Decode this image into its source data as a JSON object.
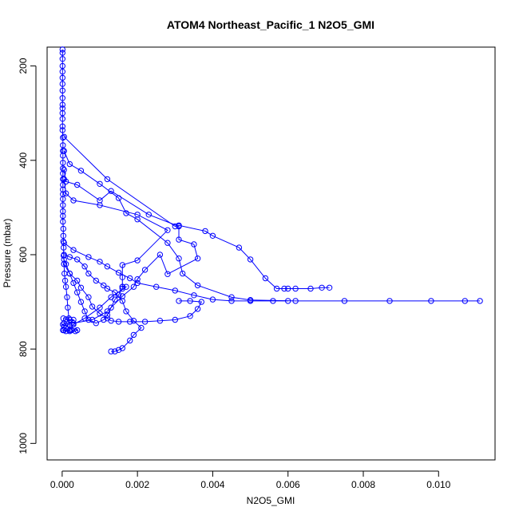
{
  "chart_data": {
    "type": "line",
    "title": "ATOM4 Northeast_Pacific_1 N2O5_GMI",
    "xlabel": "N2O5_GMI",
    "ylabel": "Pressure (mbar)",
    "xlim": [
      -0.0004,
      0.0115
    ],
    "ylim": [
      1035,
      160
    ],
    "y_reversed": true,
    "grid": false,
    "x_ticks": [
      {
        "value": 0.0,
        "label": "0.000"
      },
      {
        "value": 0.002,
        "label": "0.002"
      },
      {
        "value": 0.004,
        "label": "0.004"
      },
      {
        "value": 0.006,
        "label": "0.006"
      },
      {
        "value": 0.008,
        "label": "0.008"
      },
      {
        "value": 0.01,
        "label": "0.010"
      }
    ],
    "y_ticks": [
      {
        "value": 200,
        "label": "200"
      },
      {
        "value": 400,
        "label": "400"
      },
      {
        "value": 600,
        "label": "600"
      },
      {
        "value": 800,
        "label": "800"
      },
      {
        "value": 1000,
        "label": "1000"
      }
    ],
    "line_color": "#0000ff",
    "series": [
      {
        "points": [
          [
            1e-05,
            165
          ],
          [
            1e-05,
            172
          ],
          [
            1e-05,
            185
          ],
          [
            1e-05,
            200
          ],
          [
            1e-05,
            212
          ],
          [
            1e-05,
            225
          ],
          [
            1e-05,
            238
          ],
          [
            1e-05,
            252
          ],
          [
            1e-05,
            268
          ],
          [
            1e-05,
            282
          ],
          [
            1e-05,
            290
          ],
          [
            1e-05,
            300
          ],
          [
            1e-05,
            312
          ],
          [
            1e-05,
            328
          ],
          [
            1e-05,
            336
          ],
          [
            2e-05,
            352
          ],
          [
            2e-05,
            368
          ],
          [
            2e-05,
            380
          ],
          [
            2e-05,
            390
          ],
          [
            2e-05,
            405
          ],
          [
            2e-05,
            417
          ],
          [
            2e-05,
            428
          ],
          [
            2e-05,
            440
          ],
          [
            2e-05,
            452
          ],
          [
            2e-05,
            462
          ],
          [
            2e-05,
            472
          ],
          [
            2e-05,
            482
          ],
          [
            2e-05,
            495
          ],
          [
            2e-05,
            508
          ],
          [
            2e-05,
            518
          ],
          [
            2e-05,
            530
          ],
          [
            3e-05,
            545
          ],
          [
            3e-05,
            560
          ],
          [
            3e-05,
            572
          ],
          [
            4e-05,
            585
          ],
          [
            4e-05,
            602
          ],
          [
            5e-05,
            620
          ],
          [
            6e-05,
            640
          ],
          [
            8e-05,
            655
          ],
          [
            0.0001,
            668
          ],
          [
            0.00013,
            690
          ],
          [
            0.00015,
            712
          ],
          [
            0.00018,
            735
          ],
          [
            0.0002,
            750
          ],
          [
            0.00025,
            760
          ]
        ]
      },
      {
        "points": [
          [
            5e-05,
            350
          ],
          [
            0.0012,
            440
          ],
          [
            0.003,
            540
          ],
          [
            0.0031,
            538
          ],
          [
            0.0038,
            550
          ],
          [
            0.004,
            560
          ],
          [
            0.0047,
            585
          ],
          [
            0.005,
            610
          ],
          [
            0.0054,
            650
          ],
          [
            0.0057,
            672
          ],
          [
            0.0059,
            672
          ],
          [
            0.006,
            672
          ],
          [
            0.0062,
            672
          ],
          [
            0.0066,
            672
          ],
          [
            0.0069,
            670
          ],
          [
            0.0071,
            670
          ]
        ]
      },
      {
        "points": [
          [
            5e-05,
            380
          ],
          [
            0.0002,
            408
          ],
          [
            0.0005,
            422
          ],
          [
            0.001,
            450
          ],
          [
            0.0015,
            480
          ],
          [
            0.0017,
            512
          ],
          [
            0.002,
            525
          ],
          [
            0.0028,
            575
          ],
          [
            0.0031,
            608
          ],
          [
            0.0032,
            640
          ],
          [
            0.0036,
            665
          ],
          [
            0.0045,
            690
          ],
          [
            0.005,
            696
          ],
          [
            0.0062,
            698
          ],
          [
            0.0075,
            698
          ],
          [
            0.0087,
            698
          ],
          [
            0.0098,
            698
          ],
          [
            0.0107,
            698
          ],
          [
            0.0111,
            698
          ]
        ]
      },
      {
        "points": [
          [
            5e-05,
            420
          ],
          [
            0.0001,
            445
          ],
          [
            0.0004,
            452
          ],
          [
            0.001,
            485
          ],
          [
            0.0013,
            465
          ],
          [
            0.0023,
            515
          ],
          [
            0.0031,
            540
          ],
          [
            0.0031,
            568
          ],
          [
            0.0035,
            578
          ],
          [
            0.0036,
            608
          ],
          [
            0.0028,
            641
          ],
          [
            0.0026,
            600
          ],
          [
            0.0022,
            632
          ],
          [
            0.002,
            652
          ],
          [
            0.0019,
            668
          ],
          [
            0.0016,
            688
          ],
          [
            0.0012,
            720
          ],
          [
            0.0008,
            738
          ],
          [
            0.0003,
            745
          ],
          [
            5e-05,
            745
          ]
        ]
      },
      {
        "points": [
          [
            5e-05,
            440
          ],
          [
            0.0001,
            470
          ],
          [
            0.0003,
            485
          ],
          [
            0.001,
            495
          ],
          [
            0.002,
            515
          ],
          [
            0.0028,
            548
          ],
          [
            0.002,
            612
          ],
          [
            0.0016,
            622
          ],
          [
            0.0016,
            648
          ],
          [
            0.0016,
            668
          ],
          [
            0.0017,
            668
          ],
          [
            0.0013,
            690
          ],
          [
            0.001,
            712
          ],
          [
            0.0006,
            735
          ],
          [
            0.0003,
            748
          ],
          [
            0.0002,
            760
          ],
          [
            5e-05,
            760
          ]
        ]
      },
      {
        "points": [
          [
            5e-05,
            575
          ],
          [
            0.0003,
            590
          ],
          [
            0.0007,
            605
          ],
          [
            0.001,
            615
          ],
          [
            0.0012,
            625
          ],
          [
            0.0015,
            638
          ],
          [
            0.0018,
            650
          ],
          [
            0.002,
            660
          ],
          [
            0.0025,
            668
          ],
          [
            0.003,
            676
          ],
          [
            0.0035,
            686
          ],
          [
            0.004,
            695
          ],
          [
            0.0045,
            698
          ],
          [
            0.005,
            698
          ],
          [
            0.0056,
            698
          ],
          [
            0.006,
            698
          ]
        ]
      },
      {
        "points": [
          [
            5e-05,
            600
          ],
          [
            0.0002,
            605
          ],
          [
            0.0004,
            610
          ],
          [
            0.0006,
            625
          ],
          [
            0.0007,
            640
          ],
          [
            0.0009,
            655
          ],
          [
            0.0011,
            665
          ],
          [
            0.0012,
            672
          ],
          [
            0.0014,
            680
          ],
          [
            0.0016,
            698
          ],
          [
            0.0017,
            720
          ],
          [
            0.0019,
            740
          ],
          [
            0.0021,
            755
          ],
          [
            0.0019,
            770
          ],
          [
            0.0018,
            782
          ],
          [
            0.0016,
            798
          ],
          [
            0.0015,
            802
          ],
          [
            0.0014,
            805
          ],
          [
            0.0013,
            805
          ]
        ]
      },
      {
        "points": [
          [
            5e-05,
            610
          ],
          [
            0.0001,
            620
          ],
          [
            0.0002,
            640
          ],
          [
            0.0004,
            655
          ],
          [
            0.0005,
            670
          ],
          [
            0.0007,
            690
          ],
          [
            0.0008,
            710
          ],
          [
            0.001,
            725
          ],
          [
            0.0012,
            735
          ],
          [
            0.0013,
            740
          ],
          [
            0.0015,
            742
          ],
          [
            0.0018,
            742
          ],
          [
            0.0022,
            742
          ],
          [
            0.0026,
            740
          ],
          [
            0.003,
            738
          ],
          [
            0.0034,
            730
          ],
          [
            0.0036,
            715
          ],
          [
            0.0037,
            700
          ],
          [
            0.0034,
            698
          ],
          [
            0.0031,
            698
          ]
        ]
      },
      {
        "points": [
          [
            5e-05,
            620
          ],
          [
            0.0002,
            640
          ],
          [
            0.0003,
            660
          ],
          [
            0.0004,
            680
          ],
          [
            0.0005,
            700
          ],
          [
            0.0006,
            720
          ],
          [
            0.0007,
            738
          ],
          [
            0.0009,
            745
          ],
          [
            0.0011,
            738
          ],
          [
            0.0012,
            728
          ],
          [
            0.0013,
            712
          ],
          [
            0.0014,
            695
          ],
          [
            0.0015,
            685
          ],
          [
            0.0016,
            672
          ],
          [
            0.0016,
            668
          ]
        ]
      },
      {
        "points": [
          [
            3e-05,
            735
          ],
          [
            0.0001,
            737
          ],
          [
            0.0002,
            738
          ],
          [
            0.0003,
            738
          ],
          [
            2e-05,
            760
          ],
          [
            0.0001,
            762
          ],
          [
            0.0002,
            762
          ],
          [
            0.00035,
            762
          ],
          [
            0.0004,
            760
          ],
          [
            2e-05,
            748
          ],
          [
            5e-05,
            752
          ]
        ]
      }
    ]
  }
}
